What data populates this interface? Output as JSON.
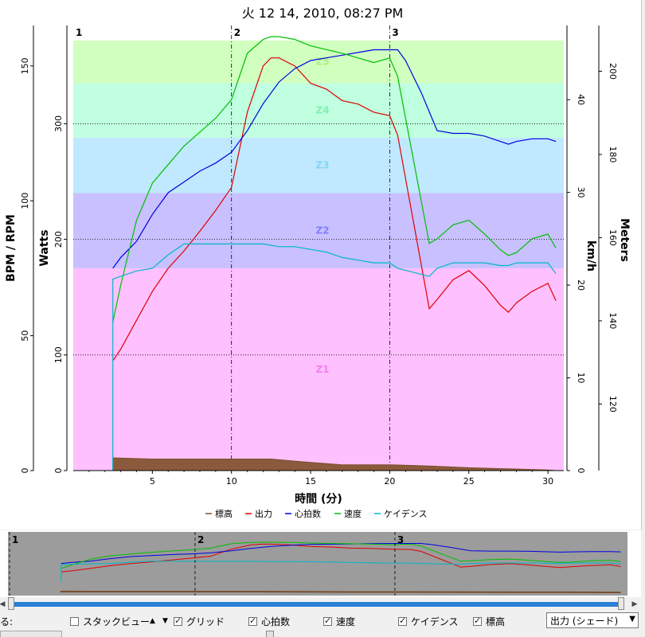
{
  "chart_data": {
    "type": "line",
    "title": "火 12 14, 2010, 08:27 PM",
    "xlabel": "時間 (分)",
    "xlim": [
      0,
      31
    ],
    "x_ticks": [
      5,
      10,
      15,
      20,
      25,
      30
    ],
    "axes": {
      "bpm": {
        "label": "BPM / RPM",
        "range": [
          0,
          165
        ],
        "ticks": [
          0,
          50,
          100,
          150
        ]
      },
      "watts": {
        "label": "Watts",
        "range": [
          0,
          385
        ],
        "ticks": [
          0,
          100,
          200,
          300
        ],
        "grid": [
          100,
          200,
          300
        ]
      },
      "kmh": {
        "label": "km/h",
        "range": [
          0,
          48
        ],
        "ticks": [
          0,
          10,
          20,
          30,
          40
        ]
      },
      "meters": {
        "label": "Meters",
        "range": [
          104,
          211
        ],
        "ticks": [
          120,
          140,
          160,
          180,
          200
        ]
      }
    },
    "zones": [
      {
        "name": "Z1",
        "from": 0,
        "to": 175,
        "color": "#ffc0ff",
        "label_color": "#f080f0"
      },
      {
        "name": "Z2",
        "from": 175,
        "to": 240,
        "color": "#c8c0ff",
        "label_color": "#8080ff"
      },
      {
        "name": "Z3",
        "from": 240,
        "to": 288,
        "color": "#c0e8ff",
        "label_color": "#80d8f0"
      },
      {
        "name": "Z4",
        "from": 288,
        "to": 335,
        "color": "#c0ffe0",
        "label_color": "#80f0b0"
      },
      {
        "name": "Z5",
        "from": 335,
        "to": 372,
        "color": "#d0ffc0",
        "label_color": "#a8f080"
      }
    ],
    "laps": [
      {
        "label": "1",
        "x": 0
      },
      {
        "label": "2",
        "x": 10
      },
      {
        "label": "3",
        "x": 20
      }
    ],
    "series": [
      {
        "name": "標高",
        "axis": "watts",
        "color": "#7a5030",
        "fill": "#8b5a3c",
        "x": [
          2.5,
          2.5,
          5,
          10,
          12.5,
          15,
          17,
          20,
          22.5,
          25,
          27.5,
          30,
          30.5
        ],
        "values": [
          0,
          11,
          10,
          10,
          10,
          7,
          5,
          5,
          4,
          2.5,
          1.5,
          0.5,
          0
        ]
      },
      {
        "name": "出力",
        "axis": "watts",
        "color": "#e00000",
        "x": [
          2.5,
          3,
          4,
          5,
          6,
          7,
          8,
          9,
          10,
          11,
          12,
          12.5,
          13,
          14,
          15,
          16,
          17,
          18,
          19,
          20,
          20.5,
          22.5,
          23,
          24,
          25,
          26,
          27,
          27.5,
          28,
          29,
          30,
          30.5
        ],
        "values": [
          95,
          105,
          130,
          155,
          175,
          190,
          207,
          225,
          245,
          310,
          350,
          357,
          357,
          350,
          335,
          330,
          320,
          317,
          310,
          307,
          290,
          140,
          148,
          165,
          173,
          160,
          143,
          137,
          145,
          155,
          162,
          147
        ]
      },
      {
        "name": "心拍数",
        "axis": "bpm",
        "color": "#0000e0",
        "x": [
          2.5,
          3,
          4,
          5,
          6,
          7,
          8,
          9,
          10,
          11,
          12,
          13,
          14,
          15,
          16,
          17,
          18,
          19,
          20,
          20.5,
          21,
          22,
          23,
          24,
          25,
          26,
          27,
          27.5,
          28,
          29,
          30,
          30.5
        ],
        "values": [
          75,
          79,
          85,
          95,
          103,
          107,
          111,
          114,
          118,
          126,
          136,
          144,
          149,
          152,
          153,
          154,
          155,
          156,
          156,
          156,
          152,
          140,
          126,
          125,
          125,
          124,
          122,
          121,
          122,
          123,
          123,
          122
        ]
      },
      {
        "name": "速度",
        "axis": "kmh",
        "color": "#00c000",
        "x": [
          2.5,
          3,
          4,
          5,
          6,
          7,
          8,
          9,
          10,
          11,
          12,
          12.5,
          13,
          14,
          15,
          16,
          17,
          18,
          19,
          20,
          20.5,
          22.5,
          23,
          24,
          25,
          26,
          27,
          27.5,
          28,
          29,
          30,
          30.5
        ],
        "values": [
          16,
          20,
          27,
          31,
          33,
          35,
          36.5,
          38,
          40,
          45,
          46.5,
          46.8,
          46.8,
          46.5,
          45.8,
          45.4,
          45.0,
          44.5,
          44.0,
          44.5,
          42.5,
          24.5,
          25,
          26.5,
          27,
          25.5,
          23.8,
          23.2,
          23.5,
          25,
          25.5,
          24
        ]
      },
      {
        "name": "ケイデンス",
        "axis": "bpm",
        "color": "#00b8c8",
        "x": [
          2.5,
          2.5,
          3,
          4,
          5,
          6,
          7,
          8,
          9,
          10,
          11,
          12,
          13,
          14,
          15,
          16,
          17,
          18,
          19,
          20,
          20.5,
          22.5,
          23,
          24,
          25,
          26,
          27,
          27.5,
          28,
          29,
          30,
          30.5
        ],
        "values": [
          0,
          71,
          72,
          74,
          75,
          80,
          84,
          84,
          84,
          84,
          84,
          84,
          83,
          83,
          82,
          81,
          79,
          78,
          77,
          77,
          75,
          72,
          75,
          77,
          77,
          77,
          76,
          76,
          77,
          77,
          77,
          73
        ]
      }
    ],
    "legend": [
      "標高",
      "出力",
      "心拍数",
      "速度",
      "ケイデンス"
    ],
    "legend_position": "bottom"
  },
  "overview": {
    "lap_labels": [
      "1",
      "2",
      "3"
    ]
  },
  "controls": {
    "cut_label": "る:",
    "stack_view": {
      "label": "スタックビュー",
      "checked": false
    },
    "grid": {
      "label": "グリッド",
      "checked": true
    },
    "heart_rate": {
      "label": "心拍数",
      "checked": true
    },
    "speed": {
      "label": "速度",
      "checked": true
    },
    "cadence": {
      "label": "ケイデンス",
      "checked": true
    },
    "altitude": {
      "label": "標高",
      "checked": true
    },
    "series_select": "出力 (シェード)"
  },
  "colors": {
    "plot_bg": "#ffffff",
    "overview_bg": "#9c9c9c",
    "scroll_blue": "#2a7fd6"
  }
}
